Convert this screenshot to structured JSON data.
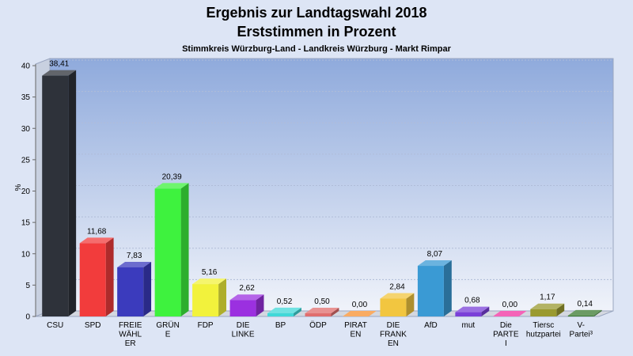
{
  "chart_data": {
    "type": "bar",
    "title": "Ergebnis zur Landtagswahl 2018",
    "title2": "Erststimmen in Prozent",
    "subtitle": "Stimmkreis Würzburg-Land - Landkreis Würzburg - Markt Rimpar",
    "ylabel": "%",
    "ylim": [
      0,
      40
    ],
    "yticks": [
      "0",
      "5",
      "10",
      "15",
      "20",
      "25",
      "30",
      "35",
      "40"
    ],
    "grid": true,
    "legend": "none",
    "categories": [
      [
        "CSU"
      ],
      [
        "SPD"
      ],
      [
        "FREIE",
        "WÄHL",
        "ER"
      ],
      [
        "GRÜN",
        "E"
      ],
      [
        "FDP"
      ],
      [
        "DIE",
        "LINKE"
      ],
      [
        "BP"
      ],
      [
        "ÖDP"
      ],
      [
        "PIRAT",
        "EN"
      ],
      [
        "DIE",
        "FRANK",
        "EN"
      ],
      [
        "AfD"
      ],
      [
        "mut"
      ],
      [
        "Die",
        "PARTE",
        "I"
      ],
      [
        "Tiersc",
        "hutzpartei"
      ],
      [
        "V-",
        "Partei³"
      ]
    ],
    "values": [
      38.41,
      11.68,
      7.83,
      20.39,
      5.16,
      2.62,
      0.52,
      0.5,
      0.0,
      2.84,
      8.07,
      0.68,
      0.0,
      1.17,
      0.14
    ],
    "labels": [
      "38,41",
      "11,68",
      "7,83",
      "20,39",
      "5,16",
      "2,62",
      "0,52",
      "0,50",
      "0,00",
      "2,84",
      "8,07",
      "0,68",
      "0,00",
      "1,17",
      "0,14"
    ],
    "colors": [
      "#2e323a",
      "#f23c3c",
      "#3b3bbd",
      "#3ef23e",
      "#f2f23c",
      "#9b30e0",
      "#40d8d8",
      "#e06e6e",
      "#f79030",
      "#f2c640",
      "#3a9ad4",
      "#7a40d8",
      "#f030a0",
      "#9a9a30",
      "#3a7a30"
    ]
  }
}
